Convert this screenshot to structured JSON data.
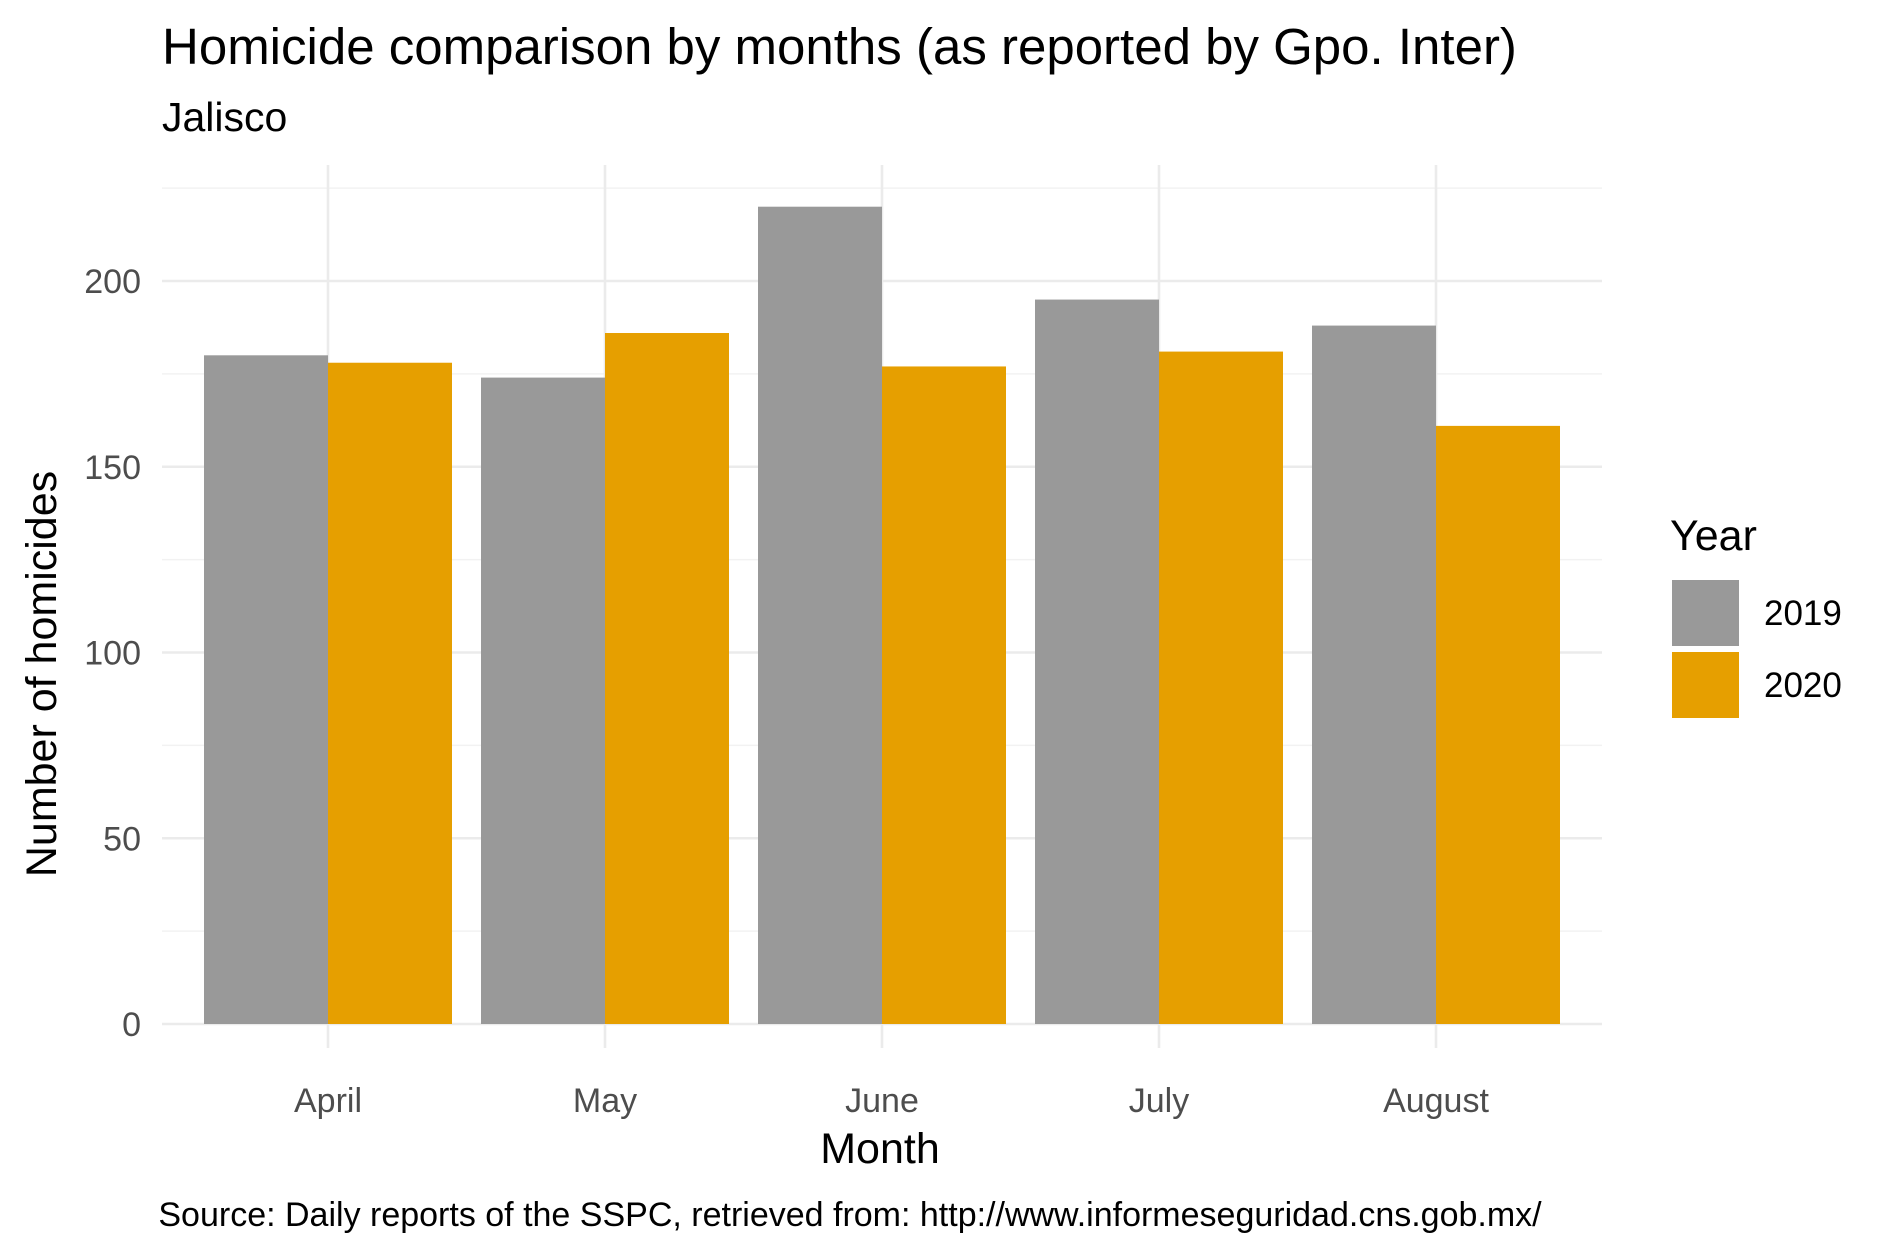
{
  "chart_data": {
    "type": "bar",
    "title": "Homicide comparison by months (as reported by Gpo. Inter)",
    "subtitle": "Jalisco",
    "xlabel": "Month",
    "ylabel": "Number of homicides",
    "caption": "Source: Daily reports of the SSPC, retrieved from: http://www.informeseguridad.cns.gob.mx/",
    "categories": [
      "April",
      "May",
      "June",
      "July",
      "August"
    ],
    "series": [
      {
        "name": "2019",
        "values": [
          180,
          174,
          220,
          195,
          188
        ],
        "color": "#999999"
      },
      {
        "name": "2020",
        "values": [
          178,
          186,
          177,
          181,
          161
        ],
        "color": "#E69F00"
      }
    ],
    "ylim": [
      0,
      225
    ],
    "y_ticks": [
      0,
      50,
      100,
      150,
      200
    ],
    "y_tick_labels": [
      "0",
      "50",
      "100",
      "150",
      "200"
    ],
    "grid": true,
    "legend": {
      "title": "Year",
      "placement": "right"
    }
  }
}
